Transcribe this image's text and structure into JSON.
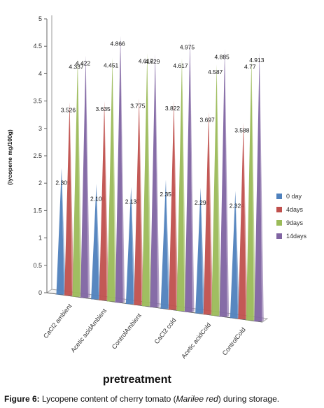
{
  "chart_data": {
    "type": "bar",
    "categories": [
      "CaCl2 ambient",
      "Acetic acidAmbient",
      "ControlAmbient",
      "CaCl2 cold",
      "Acetic acidCold",
      "ControlCold"
    ],
    "series": [
      {
        "name": "0 day",
        "color": "#4f81bd",
        "values": [
          2.309,
          2.106,
          2.137,
          2.356,
          2.293,
          2.324
        ]
      },
      {
        "name": "4days",
        "color": "#c0504d",
        "values": [
          3.526,
          3.635,
          3.775,
          3.822,
          3.697,
          3.588
        ]
      },
      {
        "name": "9days",
        "color": "#9bbb59",
        "values": [
          4.337,
          4.451,
          4.617,
          4.617,
          4.587,
          4.77
        ]
      },
      {
        "name": "14days",
        "color": "#8064a2",
        "values": [
          4.422,
          4.866,
          4.629,
          4.975,
          4.885,
          4.913
        ]
      }
    ],
    "value_labels": [
      [
        "2.309",
        "3.526",
        "4.337",
        "4.422"
      ],
      [
        "2.106",
        "3.635",
        "4.451",
        "4.866"
      ],
      [
        "2.137",
        "3.775",
        "4.617",
        "4.629"
      ],
      [
        "2.356",
        "3.822",
        "4.617",
        "4.975"
      ],
      [
        "2.293",
        "3.697",
        "4.587",
        "4.885"
      ],
      [
        "2.324",
        "3.588",
        "4.77",
        "4.913"
      ]
    ],
    "yticks": [
      "0",
      "0.5",
      "1",
      "1.5",
      "2",
      "2.5",
      "3",
      "3.5",
      "4",
      "4.5",
      "5"
    ],
    "ylim": [
      0,
      5
    ],
    "xlabel": "pretreatment",
    "ylabel": "(lycopene mg/100g)",
    "legend_position": "right",
    "grid": false
  },
  "caption": {
    "prefix": "Figure 6:",
    "text_before": " Lycopene content of cherry tomato (",
    "italic": "Marilee red",
    "text_after": ") during storage."
  }
}
